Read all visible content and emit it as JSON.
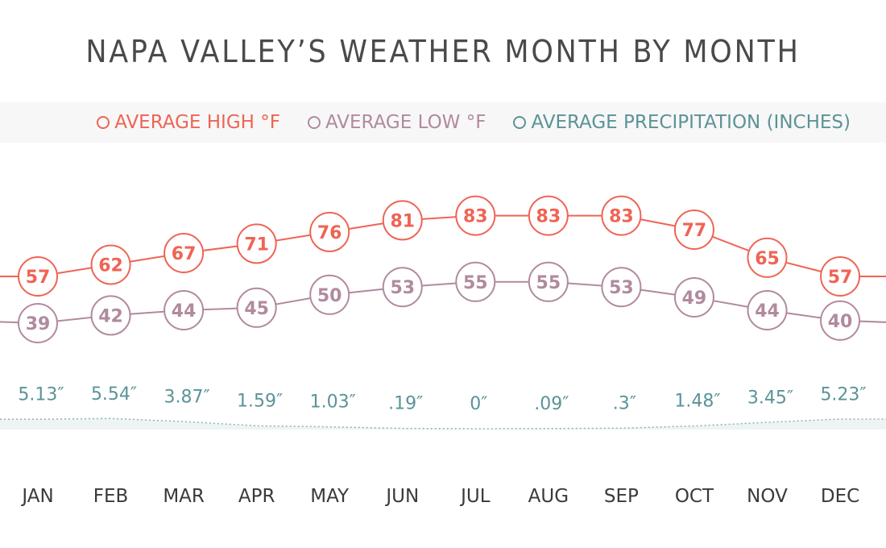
{
  "chart_data": {
    "type": "line",
    "title": "NAPA VALLEY’S WEATHER MONTH BY MONTH",
    "categories": [
      "JAN",
      "FEB",
      "MAR",
      "APR",
      "MAY",
      "JUN",
      "JUL",
      "AUG",
      "SEP",
      "OCT",
      "NOV",
      "DEC"
    ],
    "legend_placement": "top",
    "grid": false,
    "series": [
      {
        "name": "AVERAGE HIGH °F",
        "color": "#ef6454",
        "values": [
          57,
          62,
          67,
          71,
          76,
          81,
          83,
          83,
          83,
          77,
          65,
          57
        ]
      },
      {
        "name": "AVERAGE LOW °F",
        "color": "#b08a9e",
        "values": [
          39,
          42,
          44,
          45,
          50,
          53,
          55,
          55,
          53,
          49,
          44,
          40
        ]
      },
      {
        "name": "AVERAGE PRECIPITATION (INCHES)",
        "color": "#5b9398",
        "values": [
          5.13,
          5.54,
          3.87,
          1.59,
          1.03,
          0.19,
          0,
          0.09,
          0.3,
          1.48,
          3.45,
          5.23
        ],
        "labels": [
          "5.13″",
          "5.54″",
          "3.87″",
          "1.59″",
          "1.03″",
          ".19″",
          "0″",
          ".09″",
          ".3″",
          "1.48″",
          "3.45″",
          "5.23″"
        ]
      }
    ]
  }
}
